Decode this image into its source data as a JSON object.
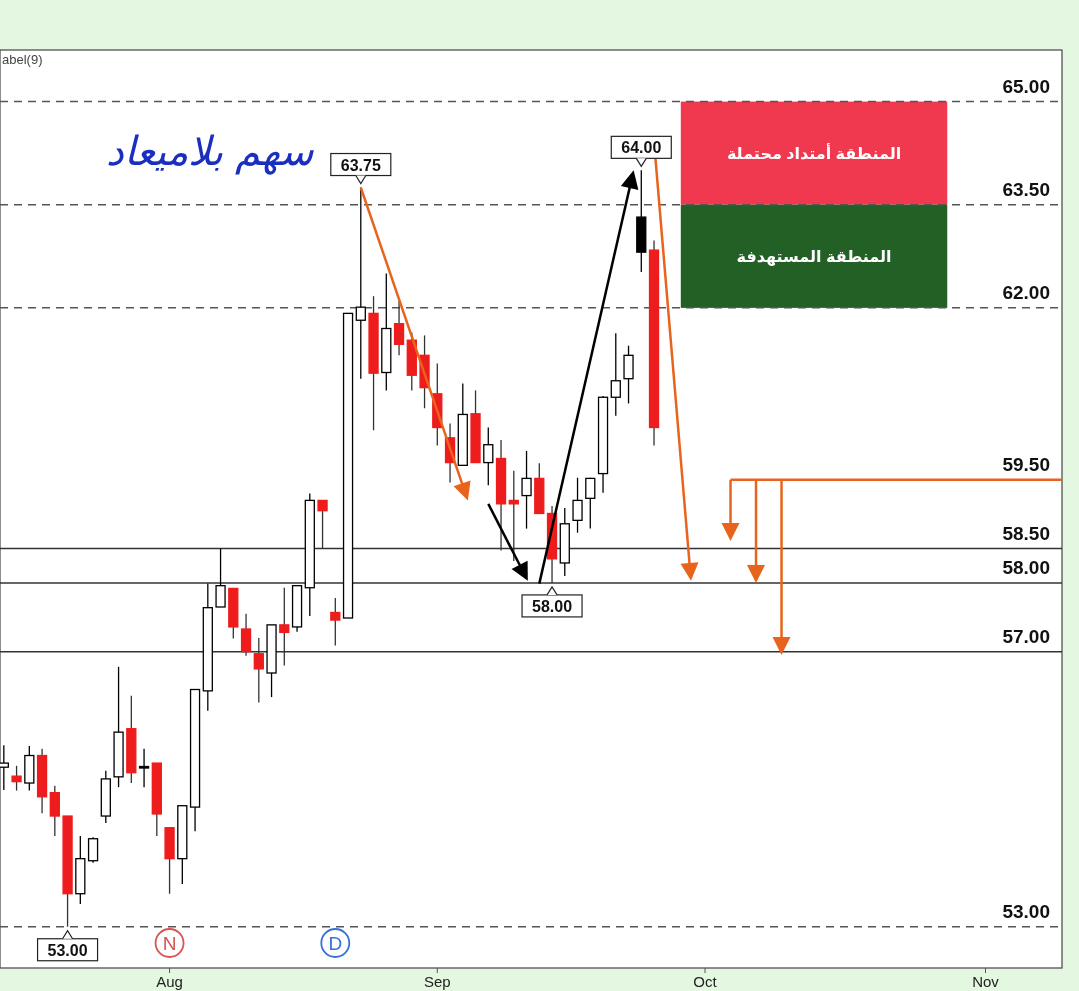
{
  "chart_data": {
    "type": "candlestick",
    "categories": [
      null,
      null,
      null,
      null,
      null,
      null,
      null,
      null,
      null,
      null,
      null,
      null,
      null,
      "Aug",
      null,
      null,
      null,
      null,
      null,
      null,
      null,
      null,
      null,
      null,
      null,
      null,
      null,
      null,
      null,
      null,
      null,
      null,
      null,
      null,
      "Sep",
      null,
      null,
      null,
      null,
      null,
      null,
      null,
      null,
      null,
      null,
      null,
      null,
      null,
      null,
      null,
      null,
      null,
      null,
      null,
      null,
      "Oct",
      null,
      null,
      null,
      null,
      null,
      null,
      null,
      null,
      null,
      null,
      null,
      null,
      null,
      null,
      null,
      null,
      null,
      null,
      null,
      null,
      null,
      "Nov",
      null,
      null,
      null,
      null,
      null
    ],
    "ohlc": [
      [
        55.32,
        55.64,
        54.99,
        55.38
      ],
      [
        55.19,
        55.34,
        54.98,
        55.11
      ],
      [
        55.09,
        55.63,
        54.98,
        55.49
      ],
      [
        55.49,
        55.59,
        54.65,
        54.89
      ],
      [
        54.95,
        55.05,
        54.32,
        54.61
      ],
      [
        54.61,
        54.61,
        53.0,
        53.48
      ],
      [
        53.48,
        54.32,
        53.33,
        53.99
      ],
      [
        53.96,
        54.3,
        53.93,
        54.28
      ],
      [
        54.61,
        55.27,
        54.51,
        55.15
      ],
      [
        55.18,
        56.78,
        55.03,
        55.83
      ],
      [
        55.88,
        56.36,
        55.09,
        55.24
      ],
      [
        55.33,
        55.59,
        55.03,
        55.31
      ],
      [
        55.38,
        55.38,
        54.32,
        54.64
      ],
      [
        54.44,
        54.44,
        53.48,
        53.99
      ],
      [
        53.99,
        54.76,
        53.62,
        54.76
      ],
      [
        54.74,
        56.45,
        54.39,
        56.45
      ],
      [
        56.43,
        57.99,
        56.14,
        57.64
      ],
      [
        57.65,
        58.5,
        57.65,
        57.96
      ],
      [
        57.92,
        57.92,
        57.19,
        57.36
      ],
      [
        57.33,
        57.55,
        56.94,
        57.0
      ],
      [
        56.97,
        57.2,
        56.26,
        56.75
      ],
      [
        56.69,
        57.39,
        56.34,
        57.39
      ],
      [
        57.39,
        57.93,
        56.8,
        57.28
      ],
      [
        57.36,
        57.96,
        57.29,
        57.96
      ],
      [
        57.93,
        59.3,
        57.52,
        59.2
      ],
      [
        59.2,
        59.2,
        58.5,
        59.05
      ],
      [
        57.57,
        57.78,
        57.09,
        57.46
      ],
      [
        57.49,
        61.92,
        57.49,
        61.92
      ],
      [
        61.82,
        63.75,
        60.97,
        62.01
      ],
      [
        61.92,
        62.17,
        60.22,
        61.05
      ],
      [
        61.06,
        62.5,
        60.8,
        61.7
      ],
      [
        61.77,
        62.11,
        61.31,
        61.47
      ],
      [
        61.53,
        61.64,
        60.8,
        61.02
      ],
      [
        61.31,
        61.6,
        60.54,
        60.84
      ],
      [
        60.75,
        61.19,
        60.0,
        60.26
      ],
      [
        60.11,
        60.32,
        59.46,
        59.75
      ],
      [
        59.71,
        60.9,
        59.71,
        60.45
      ],
      [
        60.46,
        60.8,
        59.75,
        59.75
      ],
      [
        59.75,
        60.26,
        59.42,
        60.01
      ],
      [
        59.81,
        60.08,
        58.47,
        59.15
      ],
      [
        59.2,
        59.63,
        58.32,
        59.15
      ],
      [
        59.27,
        59.92,
        58.79,
        59.52
      ],
      [
        59.52,
        59.74,
        59.01,
        59.01
      ],
      [
        59.01,
        59.12,
        58.0,
        58.35
      ],
      [
        58.29,
        59.09,
        58.1,
        58.86
      ],
      [
        58.91,
        59.53,
        58.73,
        59.2
      ],
      [
        59.23,
        59.53,
        58.79,
        59.52
      ],
      [
        59.59,
        60.72,
        59.31,
        60.7
      ],
      [
        60.7,
        61.63,
        60.43,
        60.94
      ],
      [
        60.97,
        61.45,
        60.61,
        61.31
      ],
      [
        63.32,
        64.0,
        62.52,
        62.81
      ],
      [
        62.84,
        62.98,
        60.0,
        60.26
      ],
      null,
      null,
      null,
      null,
      null,
      null,
      null,
      null,
      null,
      null,
      null,
      null,
      null,
      null,
      null,
      null,
      null,
      null,
      null,
      null,
      null,
      null,
      null,
      null,
      null,
      null,
      null,
      null,
      null,
      null,
      null
    ],
    "colors": [
      "#ffffff",
      "#ee1c1c",
      "#ffffff",
      "#ee1c1c",
      "#ee1c1c",
      "#ee1c1c",
      "#ffffff",
      "#ffffff",
      "#ffffff",
      "#ffffff",
      "#ee1c1c",
      "#000000",
      "#ee1c1c",
      "#ee1c1c",
      "#ffffff",
      "#ffffff",
      "#ffffff",
      "#ffffff",
      "#ee1c1c",
      "#ee1c1c",
      "#ee1c1c",
      "#ffffff",
      "#ee1c1c",
      "#ffffff",
      "#ffffff",
      "#ee1c1c",
      "#ee1c1c",
      "#ffffff",
      "#ffffff",
      "#ee1c1c",
      "#ffffff",
      "#ee1c1c",
      "#ee1c1c",
      "#ee1c1c",
      "#ee1c1c",
      "#ee1c1c",
      "#ffffff",
      "#ee1c1c",
      "#ffffff",
      "#ee1c1c",
      "#ee1c1c",
      "#ffffff",
      "#ee1c1c",
      "#ee1c1c",
      "#ffffff",
      "#ffffff",
      "#ffffff",
      "#ffffff",
      "#ffffff",
      "#ffffff",
      "#000000",
      "#ee1c1c",
      null,
      null,
      null,
      null,
      null,
      null,
      null,
      null,
      null,
      null,
      null,
      null,
      null,
      null,
      null,
      null,
      null,
      null,
      null,
      null,
      null,
      null,
      null,
      null,
      null,
      null,
      null,
      null,
      null,
      null,
      null
    ],
    "ylim": [
      52.4,
      65.75
    ],
    "tick_labels": "x",
    "ref_lines": [
      {
        "axis": "y",
        "value": 65,
        "label": "65.00",
        "color": "#555555",
        "line_style": "dashed"
      },
      {
        "axis": "y",
        "value": 63.5,
        "label": "63.50",
        "color": "#555555",
        "line_style": "dashed"
      },
      {
        "axis": "y",
        "value": 62,
        "label": "62.00",
        "color": "#555555",
        "line_style": "dashed"
      },
      {
        "axis": "y",
        "value": 59.5,
        "label": "59.50",
        "color": "#e8641c",
        "line_style": "solid"
      },
      {
        "axis": "y",
        "value": 58.5,
        "label": "58.50",
        "color": "#333333",
        "line_style": "solid"
      },
      {
        "axis": "y",
        "value": 58,
        "label": "58.00",
        "color": "#333333",
        "line_style": "solid"
      },
      {
        "axis": "y",
        "value": 57,
        "label": "57.00",
        "color": "#333333",
        "line_style": "solid"
      },
      {
        "axis": "y",
        "value": 53,
        "label": "53.00",
        "color": "#555555",
        "line_style": "dashed"
      }
    ],
    "bands": [
      {
        "axis": "y",
        "from": 63.5,
        "to": 65,
        "label": "المنطقة أمتداد محتملة",
        "color": "#f0394f"
      },
      {
        "axis": "y",
        "from": 62,
        "to": 63.5,
        "label": "المنطقة المستهدفة",
        "color": "#236026"
      }
    ],
    "annotations": [
      "abel(9)",
      "سهم بلاميعاد",
      {
        "text": "63.75",
        "y": 63.75
      },
      {
        "text": "64.00",
        "y": 64.0
      },
      {
        "text": "58.00",
        "y": 58.0
      },
      {
        "text": "53.00",
        "y": 53.0
      },
      "N",
      "D"
    ]
  }
}
